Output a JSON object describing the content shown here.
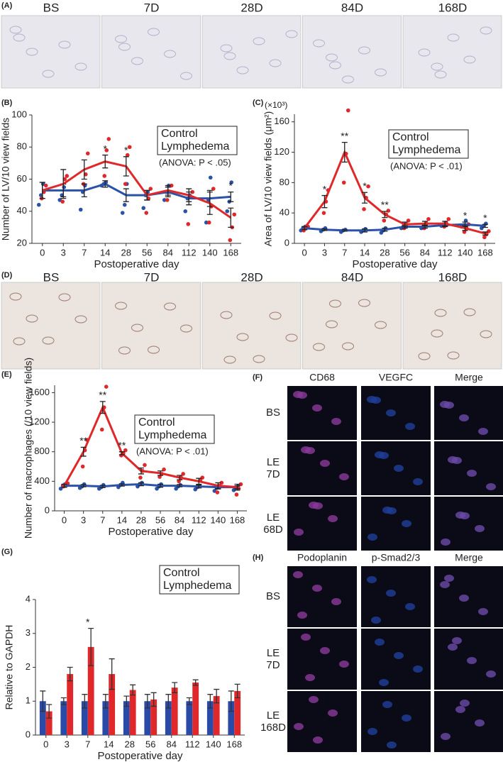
{
  "image_panels": {
    "A": {
      "label": "(A)",
      "captions": [
        "BS",
        "7D",
        "28D",
        "84D",
        "168D"
      ]
    },
    "D": {
      "label": "(D)",
      "captions": [
        "BS",
        "7D",
        "28D",
        "84D",
        "168D"
      ]
    },
    "F": {
      "label": "(F)",
      "columns": [
        "CD68",
        "VEGFC",
        "Merge"
      ],
      "rows": [
        [
          "BS"
        ],
        [
          "LE",
          "7D"
        ],
        [
          "LE",
          "68D"
        ]
      ]
    },
    "H": {
      "label": "(H)",
      "columns": [
        "Podoplanin",
        "p-Smad2/3",
        "Merge"
      ],
      "rows": [
        [
          "BS"
        ],
        [
          "LE",
          "7D"
        ],
        [
          "LE",
          "168D"
        ]
      ]
    }
  },
  "chart_data": [
    {
      "type": "line",
      "label": "(B)",
      "xlabel": "Postoperative day",
      "ylabel": "Number of LV/10 view fields",
      "note": "(ANOVA: P < .05)",
      "categories": [
        "0",
        "3",
        "7",
        "14",
        "28",
        "56",
        "84",
        "112",
        "140",
        "168"
      ],
      "ylim": [
        20,
        100
      ],
      "yticks": [
        20,
        40,
        60,
        80,
        100
      ],
      "significance": [
        null,
        null,
        null,
        "*",
        "*",
        null,
        null,
        null,
        null,
        "*"
      ],
      "series": [
        {
          "name": "Control",
          "color": "#2a52a8",
          "values": [
            53,
            53,
            53,
            57,
            50,
            50,
            52,
            48,
            48,
            49
          ],
          "errors": [
            5,
            4,
            4,
            2,
            4,
            3,
            3,
            4,
            5,
            3
          ],
          "points": [
            [
              44,
              50,
              57
            ],
            [
              47,
              50,
              55
            ],
            [
              41,
              52,
              56
            ],
            [
              56,
              57,
              58
            ],
            [
              39,
              44,
              57
            ],
            [
              42,
              50,
              52
            ],
            [
              47,
              52,
              56
            ],
            [
              40,
              48,
              50
            ],
            [
              33,
              47,
              61
            ],
            [
              40,
              46,
              58
            ]
          ]
        },
        {
          "name": "Lymphedema",
          "color": "#e0282a",
          "values": [
            53,
            57,
            66,
            71,
            68,
            50,
            53,
            50,
            45,
            36
          ],
          "errors": [
            5,
            9,
            6,
            4,
            6,
            3,
            3,
            4,
            7,
            6
          ],
          "points": [
            [
              48,
              52,
              56
            ],
            [
              46,
              60,
              62
            ],
            [
              57,
              63,
              76
            ],
            [
              62,
              78,
              85
            ],
            [
              57,
              75,
              80
            ],
            [
              39,
              48,
              54
            ],
            [
              47,
              52,
              56
            ],
            [
              32,
              49,
              52
            ],
            [
              33,
              43,
              54
            ],
            [
              22,
              30,
              38
            ]
          ]
        }
      ]
    },
    {
      "type": "line",
      "label": "(C)",
      "xlabel": "Postoperative day",
      "ylabel": "Area of LV/10 view fields (μm²)",
      "multiplier": "(×10³)",
      "note": "(ANOVA: P < .01)",
      "categories": [
        "0",
        "3",
        "7",
        "14",
        "28",
        "56",
        "84",
        "112",
        "140",
        "168"
      ],
      "ylim": [
        0,
        170
      ],
      "yticks": [
        0,
        40,
        80,
        120,
        160
      ],
      "significance": [
        null,
        "*",
        "**",
        "*",
        "**",
        null,
        null,
        null,
        "*",
        "*"
      ],
      "series": [
        {
          "name": "Control",
          "color": "#2a52a8",
          "values": [
            20,
            18,
            17,
            17,
            18,
            22,
            22,
            24,
            25,
            23
          ],
          "errors": [
            2,
            1,
            1,
            2,
            2,
            2,
            2,
            2,
            3,
            2
          ],
          "points": [
            [
              17,
              20,
              22
            ],
            [
              16,
              18,
              20
            ],
            [
              15,
              17,
              18
            ],
            [
              15,
              17,
              19
            ],
            [
              14,
              17,
              20
            ],
            [
              20,
              22,
              24
            ],
            [
              20,
              23,
              24
            ],
            [
              23,
              25,
              27
            ],
            [
              22,
              24,
              30
            ],
            [
              20,
              23,
              26
            ]
          ]
        },
        {
          "name": "Lymphedema",
          "color": "#e0282a",
          "values": [
            20,
            55,
            120,
            60,
            38,
            25,
            26,
            26,
            20,
            13
          ],
          "errors": [
            2,
            8,
            13,
            7,
            4,
            3,
            3,
            3,
            3,
            2
          ],
          "points": [
            [
              17,
              20,
              22
            ],
            [
              40,
              55,
              70
            ],
            [
              80,
              118,
              175
            ],
            [
              45,
              60,
              75
            ],
            [
              30,
              38,
              43
            ],
            [
              20,
              25,
              30
            ],
            [
              20,
              26,
              32
            ],
            [
              22,
              26,
              32
            ],
            [
              15,
              20,
              25
            ],
            [
              8,
              12,
              16
            ]
          ]
        }
      ]
    },
    {
      "type": "line",
      "label": "(E)",
      "xlabel": "Postoperative day",
      "ylabel": "Number of macrophages (/10 view fields)",
      "note": "(ANOVA: P < .01)",
      "categories": [
        "0",
        "3",
        "7",
        "14",
        "28",
        "56",
        "84",
        "112",
        "140",
        "168"
      ],
      "ylim": [
        0,
        1700
      ],
      "yticks": [
        0,
        400,
        800,
        1200,
        1600
      ],
      "significance": [
        null,
        "**",
        "**",
        "**",
        null,
        null,
        null,
        null,
        null,
        null
      ],
      "series": [
        {
          "name": "Control",
          "color": "#2a52a8",
          "values": [
            340,
            340,
            330,
            350,
            360,
            340,
            340,
            330,
            320,
            320
          ],
          "errors": [
            20,
            15,
            15,
            15,
            20,
            20,
            15,
            20,
            25,
            20
          ],
          "points": [
            [
              300,
              340,
              360
            ],
            [
              310,
              330,
              360
            ],
            [
              300,
              320,
              350
            ],
            [
              320,
              350,
              380
            ],
            [
              330,
              360,
              380
            ],
            [
              300,
              330,
              360
            ],
            [
              300,
              330,
              350
            ],
            [
              290,
              320,
              340
            ],
            [
              270,
              310,
              340
            ],
            [
              280,
              310,
              330
            ]
          ]
        },
        {
          "name": "Lymphedema",
          "color": "#e0282a",
          "values": [
            340,
            800,
            1400,
            780,
            540,
            510,
            450,
            400,
            340,
            320
          ],
          "errors": [
            20,
            60,
            80,
            20,
            40,
            30,
            30,
            40,
            40,
            40
          ],
          "points": [
            [
              330,
              350,
              370
            ],
            [
              600,
              820,
              960
            ],
            [
              1100,
              1400,
              1680
            ],
            [
              750,
              780,
              820
            ],
            [
              450,
              540,
              620
            ],
            [
              460,
              500,
              560
            ],
            [
              400,
              450,
              500
            ],
            [
              330,
              410,
              450
            ],
            [
              250,
              340,
              380
            ],
            [
              220,
              300,
              360
            ]
          ]
        }
      ]
    },
    {
      "type": "bar",
      "label": "(G)",
      "xlabel": "Postoperative day",
      "ylabel": "Relative to GAPDH",
      "categories": [
        "0",
        "3",
        "7",
        "14",
        "28",
        "56",
        "84",
        "112",
        "140",
        "168"
      ],
      "ylim": [
        0,
        4
      ],
      "yticks": [
        0,
        1,
        2,
        3,
        4
      ],
      "significance": [
        null,
        null,
        "*",
        null,
        null,
        null,
        null,
        null,
        null,
        null
      ],
      "series": [
        {
          "name": "Control",
          "color": "#2a4aa8",
          "values": [
            1,
            1,
            1,
            1,
            1,
            1,
            1,
            1,
            1,
            1
          ],
          "errors": [
            0.3,
            0.1,
            0.2,
            0.2,
            0.15,
            0.2,
            0.2,
            0.1,
            0.2,
            0.3
          ]
        },
        {
          "name": "Lymphedema",
          "color": "#e0282a",
          "values": [
            0.7,
            1.8,
            2.6,
            1.8,
            1.33,
            1.05,
            1.4,
            1.55,
            1.15,
            1.3
          ],
          "errors": [
            0.2,
            0.2,
            0.55,
            0.45,
            0.15,
            0.2,
            0.15,
            0.08,
            0.2,
            0.2
          ]
        }
      ]
    }
  ]
}
